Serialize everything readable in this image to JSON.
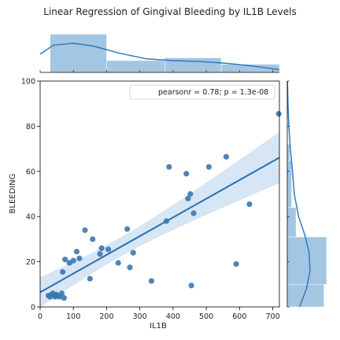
{
  "chart_data": {
    "type": "scatter",
    "title": "Linear Regression of Gingival Bleeding by IL1B Levels",
    "xlabel": "IL1B",
    "ylabel": "BLEEDING",
    "xlim": [
      0,
      720
    ],
    "ylim": [
      0,
      100
    ],
    "xticks": [
      "0",
      "100",
      "200",
      "300",
      "400",
      "500",
      "600",
      "700"
    ],
    "yticks": [
      "0",
      "20",
      "40",
      "60",
      "80",
      "100"
    ],
    "legend": "pearsonr = 0.78; p = 1.3e-08",
    "legend_position": "top-right",
    "grid": false,
    "colors": {
      "points": "#3a78b0",
      "line": "#2a6fb0",
      "band": "#c6dbef",
      "hist": "#9ec3e0",
      "kde": "#2f7bbf"
    },
    "points": [
      [
        25,
        5
      ],
      [
        30,
        4.5
      ],
      [
        35,
        5.5
      ],
      [
        38,
        6
      ],
      [
        42,
        5
      ],
      [
        45,
        4.5
      ],
      [
        48,
        5.5
      ],
      [
        52,
        5
      ],
      [
        58,
        4.5
      ],
      [
        65,
        6
      ],
      [
        72,
        4
      ],
      [
        68,
        15.5
      ],
      [
        75,
        21
      ],
      [
        88,
        19.5
      ],
      [
        100,
        20.5
      ],
      [
        110,
        24.5
      ],
      [
        118,
        21.5
      ],
      [
        135,
        34
      ],
      [
        150,
        12.5
      ],
      [
        158,
        30
      ],
      [
        180,
        23.5
      ],
      [
        185,
        26
      ],
      [
        205,
        25.5
      ],
      [
        235,
        19.5
      ],
      [
        262,
        34.5
      ],
      [
        270,
        17.5
      ],
      [
        280,
        24
      ],
      [
        335,
        11.5
      ],
      [
        380,
        38
      ],
      [
        388,
        62
      ],
      [
        440,
        59
      ],
      [
        445,
        48
      ],
      [
        452,
        50
      ],
      [
        455,
        9.5
      ],
      [
        462,
        41.5
      ],
      [
        508,
        62
      ],
      [
        560,
        66.5
      ],
      [
        590,
        19
      ],
      [
        630,
        45.5
      ],
      [
        718,
        85.5
      ]
    ],
    "regression": {
      "intercept": 6.5,
      "slope": 0.0828
    },
    "marginal_x": {
      "bins": [
        [
          30,
          200,
          4.2
        ],
        [
          200,
          375,
          1.3
        ],
        [
          375,
          545,
          1.6
        ],
        [
          545,
          720,
          0.9
        ]
      ],
      "kde": [
        [
          0,
          2.0
        ],
        [
          40,
          3.0
        ],
        [
          100,
          3.2
        ],
        [
          160,
          2.9
        ],
        [
          240,
          2.1
        ],
        [
          320,
          1.5
        ],
        [
          400,
          1.3
        ],
        [
          480,
          1.2
        ],
        [
          560,
          1.0
        ],
        [
          640,
          0.7
        ],
        [
          720,
          0.3
        ]
      ]
    },
    "marginal_y": {
      "bins": [
        [
          0,
          10,
          4.2
        ],
        [
          10,
          31,
          4.5
        ],
        [
          31,
          44,
          1.0
        ],
        [
          44,
          65,
          0.5
        ],
        [
          65,
          72,
          0.3
        ]
      ],
      "kde": [
        [
          0,
          1.4
        ],
        [
          8,
          2.2
        ],
        [
          16,
          2.6
        ],
        [
          24,
          2.5
        ],
        [
          32,
          2.0
        ],
        [
          40,
          1.3
        ],
        [
          50,
          0.8
        ],
        [
          60,
          0.6
        ],
        [
          70,
          0.35
        ],
        [
          80,
          0.18
        ],
        [
          90,
          0.08
        ],
        [
          100,
          0.02
        ]
      ]
    }
  }
}
